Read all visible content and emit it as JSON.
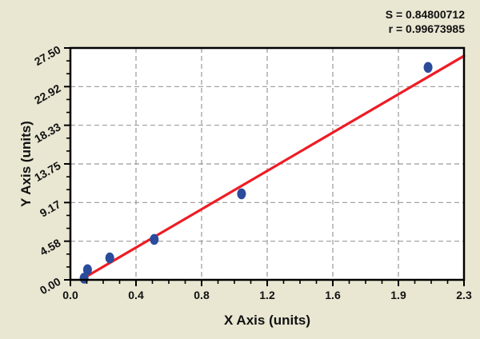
{
  "chart_data": {
    "type": "scatter",
    "title": "",
    "xlabel": "X Axis (units)",
    "ylabel": "Y Axis (units)",
    "x_tick_labels": [
      "0.0",
      "0.4",
      "0.8",
      "1.2",
      "1.6",
      "1.9",
      "2.3"
    ],
    "y_tick_labels": [
      "0.00",
      "4.58",
      "9.17",
      "13.75",
      "18.33",
      "22.92",
      "27.50"
    ],
    "xlim": [
      0,
      2.3
    ],
    "ylim": [
      0,
      27.5
    ],
    "grid": true,
    "legend_position": "none",
    "annotations": [
      "S = 0.84800712",
      "r = 0.99673985"
    ],
    "stats": {
      "S": "0.84800712",
      "r": "0.99673985"
    },
    "points": [
      {
        "x": 0.08,
        "y": 0.2
      },
      {
        "x": 0.1,
        "y": 1.2
      },
      {
        "x": 0.23,
        "y": 2.6
      },
      {
        "x": 0.49,
        "y": 4.8
      },
      {
        "x": 1.0,
        "y": 10.2
      },
      {
        "x": 2.09,
        "y": 25.2
      }
    ],
    "fit_line": {
      "slope": 11.86,
      "intercept": -0.72
    },
    "colors": {
      "point": "#2b4b9b",
      "fit_line": "#ee1c25",
      "grid": "#999999",
      "frame": "#000000",
      "plot_background": "#ffffff",
      "page_background": "#e9e6d2",
      "text": "#111111"
    }
  }
}
